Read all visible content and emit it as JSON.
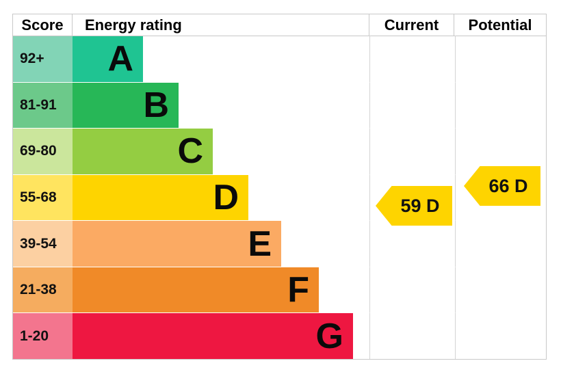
{
  "header": {
    "score": "Score",
    "energy_rating": "Energy rating",
    "current": "Current",
    "potential": "Potential"
  },
  "bands": [
    {
      "range": "92+",
      "letter": "A",
      "bar_color": "#1fc492",
      "range_color": "#82d4b6"
    },
    {
      "range": "81-91",
      "letter": "B",
      "bar_color": "#27b757",
      "range_color": "#6cc98a"
    },
    {
      "range": "69-80",
      "letter": "C",
      "bar_color": "#94cd42",
      "range_color": "#cbe69c"
    },
    {
      "range": "55-68",
      "letter": "D",
      "bar_color": "#fed400",
      "range_color": "#ffe45f"
    },
    {
      "range": "39-54",
      "letter": "E",
      "bar_color": "#fbaa63",
      "range_color": "#fcd0a2"
    },
    {
      "range": "21-38",
      "letter": "F",
      "bar_color": "#f08a28",
      "range_color": "#f5ac5f"
    },
    {
      "range": "1-20",
      "letter": "G",
      "bar_color": "#ee1741",
      "range_color": "#f3758e"
    }
  ],
  "current": {
    "label": "59 D",
    "value": 59,
    "band": "D",
    "arrow_color": "#fed400"
  },
  "potential": {
    "label": "66 D",
    "value": 66,
    "band": "D",
    "arrow_color": "#fed400"
  },
  "chart_data": {
    "type": "bar",
    "title": "Energy rating (EPC band chart)",
    "columns": [
      "Score",
      "Energy rating",
      "Current",
      "Potential"
    ],
    "categories": [
      "A",
      "B",
      "C",
      "D",
      "E",
      "F",
      "G"
    ],
    "score_ranges": [
      "92+",
      "81-91",
      "69-80",
      "55-68",
      "39-54",
      "21-38",
      "1-20"
    ],
    "bar_lengths_relative": [
      1,
      1.5,
      2,
      2.5,
      3,
      3.5,
      4
    ],
    "band_colors": [
      "#1fc492",
      "#27b757",
      "#94cd42",
      "#fed400",
      "#fbaa63",
      "#f08a28",
      "#ee1741"
    ],
    "current": {
      "value": 59,
      "band": "D"
    },
    "potential": {
      "value": 66,
      "band": "D"
    },
    "legend_position": "none",
    "grid": false
  }
}
